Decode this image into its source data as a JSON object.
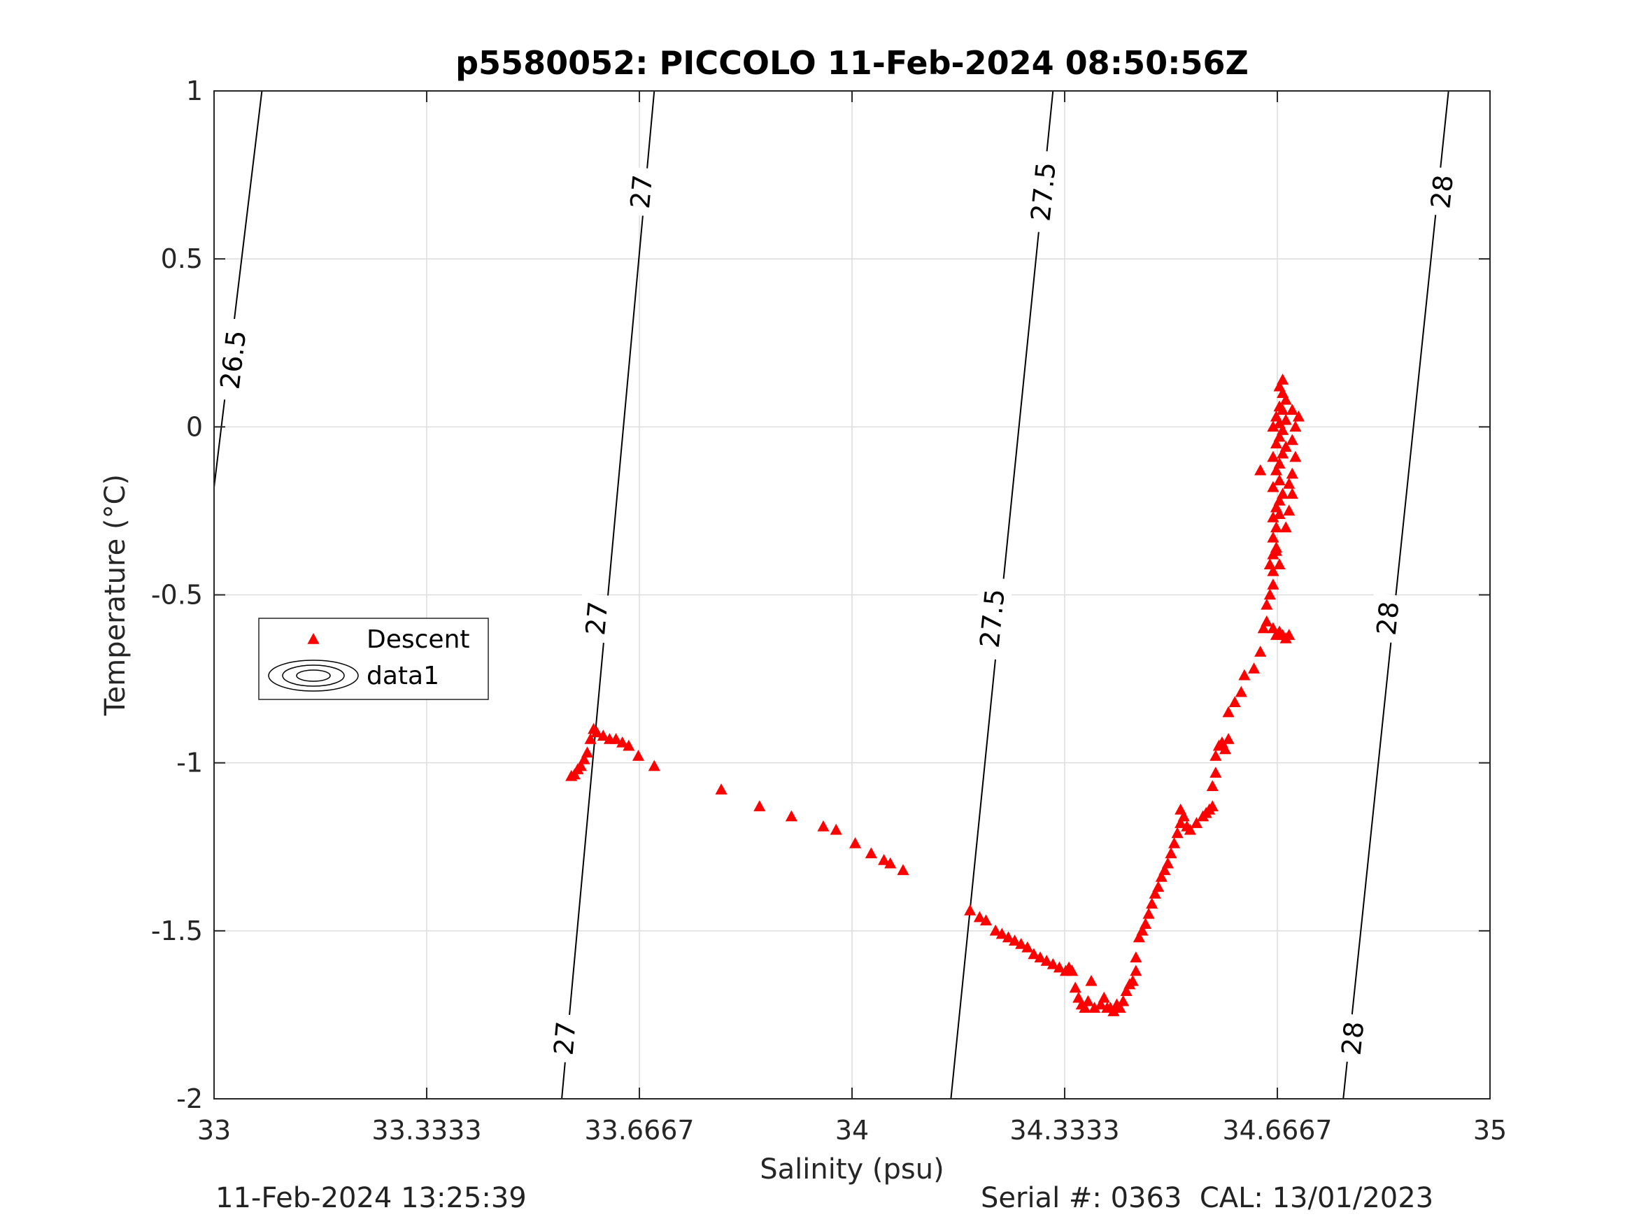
{
  "chart_data": {
    "type": "scatter",
    "title": "p5580052: PICCOLO 11-Feb-2024 08:50:56Z",
    "xlabel": "Salinity (psu)",
    "ylabel": "Temperature (°C)",
    "xlim": [
      33,
      35
    ],
    "ylim": [
      -2,
      1
    ],
    "xticks": [
      33,
      33.3333,
      33.6667,
      34,
      34.3333,
      34.6667,
      35
    ],
    "xtick_labels": [
      "33",
      "33.3333",
      "33.6667",
      "34",
      "34.3333",
      "34.6667",
      "35"
    ],
    "yticks": [
      -2,
      -1.5,
      -1,
      -0.5,
      0,
      0.5,
      1
    ],
    "ytick_labels": [
      "-2",
      "-1.5",
      "-1",
      "-0.5",
      "0",
      "0.5",
      "1"
    ],
    "grid": true,
    "legend": {
      "placement": "middle-left",
      "entries": [
        "Descent",
        "data1"
      ]
    },
    "series": [
      {
        "name": "Descent",
        "marker": "triangle",
        "color": "#ff0000",
        "points": [
          [
            33.56,
            -1.04
          ],
          [
            33.565,
            -1.035
          ],
          [
            33.57,
            -1.02
          ],
          [
            33.575,
            -1.01
          ],
          [
            33.58,
            -0.99
          ],
          [
            33.585,
            -0.97
          ],
          [
            33.59,
            -0.93
          ],
          [
            33.595,
            -0.9
          ],
          [
            33.6,
            -0.91
          ],
          [
            33.61,
            -0.92
          ],
          [
            33.62,
            -0.93
          ],
          [
            33.63,
            -0.93
          ],
          [
            33.64,
            -0.94
          ],
          [
            33.65,
            -0.95
          ],
          [
            33.665,
            -0.98
          ],
          [
            33.69,
            -1.01
          ],
          [
            33.795,
            -1.08
          ],
          [
            33.855,
            -1.13
          ],
          [
            33.905,
            -1.16
          ],
          [
            33.955,
            -1.19
          ],
          [
            33.975,
            -1.2
          ],
          [
            34.005,
            -1.24
          ],
          [
            34.03,
            -1.27
          ],
          [
            34.05,
            -1.29
          ],
          [
            34.06,
            -1.3
          ],
          [
            34.08,
            -1.32
          ],
          [
            34.185,
            -1.44
          ],
          [
            34.2,
            -1.46
          ],
          [
            34.21,
            -1.47
          ],
          [
            34.225,
            -1.5
          ],
          [
            34.235,
            -1.51
          ],
          [
            34.245,
            -1.52
          ],
          [
            34.255,
            -1.53
          ],
          [
            34.265,
            -1.54
          ],
          [
            34.275,
            -1.55
          ],
          [
            34.285,
            -1.57
          ],
          [
            34.295,
            -1.58
          ],
          [
            34.305,
            -1.59
          ],
          [
            34.315,
            -1.6
          ],
          [
            34.325,
            -1.61
          ],
          [
            34.335,
            -1.62
          ],
          [
            34.34,
            -1.61
          ],
          [
            34.345,
            -1.62
          ],
          [
            34.35,
            -1.67
          ],
          [
            34.355,
            -1.7
          ],
          [
            34.36,
            -1.72
          ],
          [
            34.365,
            -1.73
          ],
          [
            34.37,
            -1.71
          ],
          [
            34.375,
            -1.65
          ],
          [
            34.38,
            -1.73
          ],
          [
            34.39,
            -1.72
          ],
          [
            34.395,
            -1.7
          ],
          [
            34.4,
            -1.73
          ],
          [
            34.405,
            -1.73
          ],
          [
            34.41,
            -1.74
          ],
          [
            34.415,
            -1.72
          ],
          [
            34.42,
            -1.73
          ],
          [
            34.425,
            -1.71
          ],
          [
            34.43,
            -1.68
          ],
          [
            34.435,
            -1.66
          ],
          [
            34.44,
            -1.65
          ],
          [
            34.445,
            -1.62
          ],
          [
            34.445,
            -1.58
          ],
          [
            34.45,
            -1.52
          ],
          [
            34.455,
            -1.5
          ],
          [
            34.46,
            -1.48
          ],
          [
            34.465,
            -1.45
          ],
          [
            34.47,
            -1.42
          ],
          [
            34.475,
            -1.39
          ],
          [
            34.48,
            -1.37
          ],
          [
            34.485,
            -1.34
          ],
          [
            34.49,
            -1.32
          ],
          [
            34.495,
            -1.3
          ],
          [
            34.5,
            -1.27
          ],
          [
            34.505,
            -1.24
          ],
          [
            34.51,
            -1.21
          ],
          [
            34.515,
            -1.18
          ],
          [
            34.515,
            -1.14
          ],
          [
            34.52,
            -1.16
          ],
          [
            34.525,
            -1.19
          ],
          [
            34.53,
            -1.2
          ],
          [
            34.54,
            -1.18
          ],
          [
            34.55,
            -1.16
          ],
          [
            34.555,
            -1.15
          ],
          [
            34.56,
            -1.14
          ],
          [
            34.565,
            -1.13
          ],
          [
            34.565,
            -1.07
          ],
          [
            34.57,
            -1.03
          ],
          [
            34.57,
            -0.98
          ],
          [
            34.575,
            -0.95
          ],
          [
            34.58,
            -0.94
          ],
          [
            34.585,
            -0.96
          ],
          [
            34.59,
            -0.93
          ],
          [
            34.59,
            -0.85
          ],
          [
            34.6,
            -0.82
          ],
          [
            34.61,
            -0.79
          ],
          [
            34.615,
            -0.74
          ],
          [
            34.63,
            -0.72
          ],
          [
            34.64,
            -0.67
          ],
          [
            34.645,
            -0.6
          ],
          [
            34.65,
            -0.58
          ],
          [
            34.65,
            -0.53
          ],
          [
            34.655,
            -0.5
          ],
          [
            34.66,
            -0.47
          ],
          [
            34.66,
            -0.43
          ],
          [
            34.655,
            -0.41
          ],
          [
            34.66,
            -0.38
          ],
          [
            34.665,
            -0.36
          ],
          [
            34.66,
            -0.33
          ],
          [
            34.665,
            -0.3
          ],
          [
            34.66,
            -0.27
          ],
          [
            34.67,
            -0.26
          ],
          [
            34.665,
            -0.24
          ],
          [
            34.67,
            -0.22
          ],
          [
            34.675,
            -0.2
          ],
          [
            34.66,
            -0.18
          ],
          [
            34.67,
            -0.16
          ],
          [
            34.665,
            -0.13
          ],
          [
            34.67,
            -0.11
          ],
          [
            34.66,
            -0.09
          ],
          [
            34.675,
            -0.08
          ],
          [
            34.68,
            -0.06
          ],
          [
            34.665,
            -0.05
          ],
          [
            34.67,
            -0.03
          ],
          [
            34.675,
            -0.01
          ],
          [
            34.66,
            0.0
          ],
          [
            34.67,
            0.01
          ],
          [
            34.68,
            0.02
          ],
          [
            34.665,
            0.03
          ],
          [
            34.675,
            0.05
          ],
          [
            34.67,
            0.06
          ],
          [
            34.68,
            0.08
          ],
          [
            34.675,
            0.1
          ],
          [
            34.67,
            0.12
          ],
          [
            34.675,
            0.14
          ],
          [
            34.68,
            -0.63
          ],
          [
            34.675,
            -0.62
          ],
          [
            34.67,
            -0.61
          ],
          [
            34.665,
            -0.62
          ],
          [
            34.66,
            -0.6
          ],
          [
            34.685,
            -0.62
          ],
          [
            34.69,
            -0.14
          ],
          [
            34.695,
            -0.09
          ],
          [
            34.69,
            -0.04
          ],
          [
            34.695,
            0.0
          ],
          [
            34.7,
            0.03
          ],
          [
            34.69,
            0.05
          ],
          [
            34.685,
            -0.17
          ],
          [
            34.69,
            -0.2
          ],
          [
            34.64,
            -0.13
          ],
          [
            34.68,
            -0.3
          ],
          [
            34.685,
            -0.25
          ],
          [
            34.67,
            -0.41
          ],
          [
            34.665,
            -0.37
          ]
        ]
      }
    ],
    "isopycnals": [
      {
        "label": "26.5",
        "bottom": [
          33.0,
          -0.18
        ],
        "top": [
          33.075,
          1.0
        ]
      },
      {
        "label": "27",
        "bottom": [
          33.545,
          -2.0
        ],
        "top": [
          33.69,
          1.0
        ]
      },
      {
        "label": "27.5",
        "bottom": [
          34.155,
          -2.0
        ],
        "top": [
          34.315,
          1.0
        ]
      },
      {
        "label": "28",
        "bottom": [
          34.77,
          -2.0
        ],
        "top": [
          34.935,
          1.0
        ]
      }
    ],
    "isopycnal_labels": [
      {
        "text": "26.5",
        "s": 33.03,
        "t": 0.2
      },
      {
        "text": "27",
        "s": 33.67,
        "t": 0.7
      },
      {
        "text": "27",
        "s": 33.6,
        "t": -0.57
      },
      {
        "text": "27",
        "s": 33.55,
        "t": -1.82
      },
      {
        "text": "27.5",
        "s": 34.3,
        "t": 0.7
      },
      {
        "text": "27.5",
        "s": 34.22,
        "t": -0.57
      },
      {
        "text": "28",
        "s": 34.925,
        "t": 0.7
      },
      {
        "text": "28",
        "s": 34.84,
        "t": -0.57
      },
      {
        "text": "28",
        "s": 34.785,
        "t": -1.82
      }
    ]
  },
  "footer": {
    "left": "11-Feb-2024 13:25:39",
    "right": "Serial #: 0363  CAL: 13/01/2023"
  }
}
